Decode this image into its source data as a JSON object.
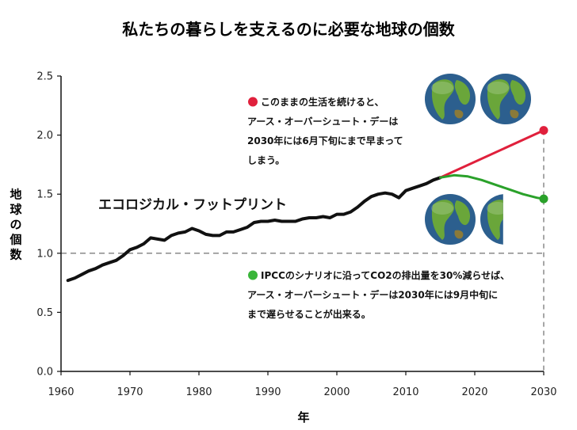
{
  "chart_data": {
    "type": "line",
    "title": "私たちの暮らしを支えるのに必要な地球の個数",
    "xlabel": "年",
    "ylabel": "地球の個数",
    "xlim": [
      1960,
      2030
    ],
    "ylim": [
      0.0,
      2.5
    ],
    "x_ticks": [
      "1960",
      "1970",
      "1980",
      "1990",
      "2000",
      "2010",
      "2020",
      "2030"
    ],
    "y_ticks": [
      "0.0",
      "0.5",
      "1.0",
      "1.5",
      "2.0",
      "2.5"
    ],
    "reference_line": {
      "y": 1.0,
      "style": "dashed"
    },
    "series": [
      {
        "name": "エコロジカル・フットプリント",
        "color": "#111111",
        "x": [
          1961,
          1962,
          1963,
          1964,
          1965,
          1966,
          1967,
          1968,
          1969,
          1970,
          1971,
          1972,
          1973,
          1974,
          1975,
          1976,
          1977,
          1978,
          1979,
          1980,
          1981,
          1982,
          1983,
          1984,
          1985,
          1986,
          1987,
          1988,
          1989,
          1990,
          1991,
          1992,
          1993,
          1994,
          1995,
          1996,
          1997,
          1998,
          1999,
          2000,
          2001,
          2002,
          2003,
          2004,
          2005,
          2006,
          2007,
          2008,
          2009,
          2010,
          2011,
          2012,
          2013,
          2014,
          2015
        ],
        "y": [
          0.77,
          0.79,
          0.82,
          0.85,
          0.87,
          0.9,
          0.92,
          0.94,
          0.98,
          1.03,
          1.05,
          1.08,
          1.13,
          1.12,
          1.11,
          1.15,
          1.17,
          1.18,
          1.21,
          1.19,
          1.16,
          1.15,
          1.15,
          1.18,
          1.18,
          1.2,
          1.22,
          1.26,
          1.27,
          1.27,
          1.28,
          1.27,
          1.27,
          1.27,
          1.29,
          1.3,
          1.3,
          1.31,
          1.3,
          1.33,
          1.33,
          1.35,
          1.39,
          1.44,
          1.48,
          1.5,
          1.51,
          1.5,
          1.47,
          1.53,
          1.55,
          1.57,
          1.59,
          1.62,
          1.64
        ]
      },
      {
        "name": "",
        "color": "#e0203c",
        "x": [
          2015,
          2030
        ],
        "y": [
          1.64,
          2.04
        ]
      },
      {
        "name": "",
        "color": "#2aa12a",
        "x": [
          2015,
          2017,
          2019,
          2021,
          2023,
          2025,
          2027,
          2029,
          2030
        ],
        "y": [
          1.64,
          1.66,
          1.65,
          1.62,
          1.58,
          1.54,
          1.5,
          1.47,
          1.46
        ]
      }
    ],
    "annotations": [
      {
        "marker_color": "#e0203c",
        "lines": [
          "このままの生活を続けると、",
          "アース・オーバーシュート・デーは",
          "2030年には6月下旬にまで早まって",
          "しまう。"
        ]
      },
      {
        "marker_color": "#3ab53a",
        "lines": [
          "IPCCのシナリオに沿ってCO2の排出量を30%減らせば、",
          "アース・オーバーシュート・デーは2030年には9月中旬に",
          "まで遅らせることが出来る。"
        ]
      }
    ],
    "globe_icons": [
      {
        "name": "globe-icon",
        "fraction": 1.0
      },
      {
        "name": "globe-icon",
        "fraction": 1.0
      },
      {
        "name": "globe-icon",
        "fraction": 1.0
      },
      {
        "name": "globe-icon",
        "fraction": 0.45
      }
    ],
    "colors": {
      "ocean": "#2c5f8e",
      "land": "#6aa63a",
      "grid_dash": "#8a8a8a"
    }
  }
}
